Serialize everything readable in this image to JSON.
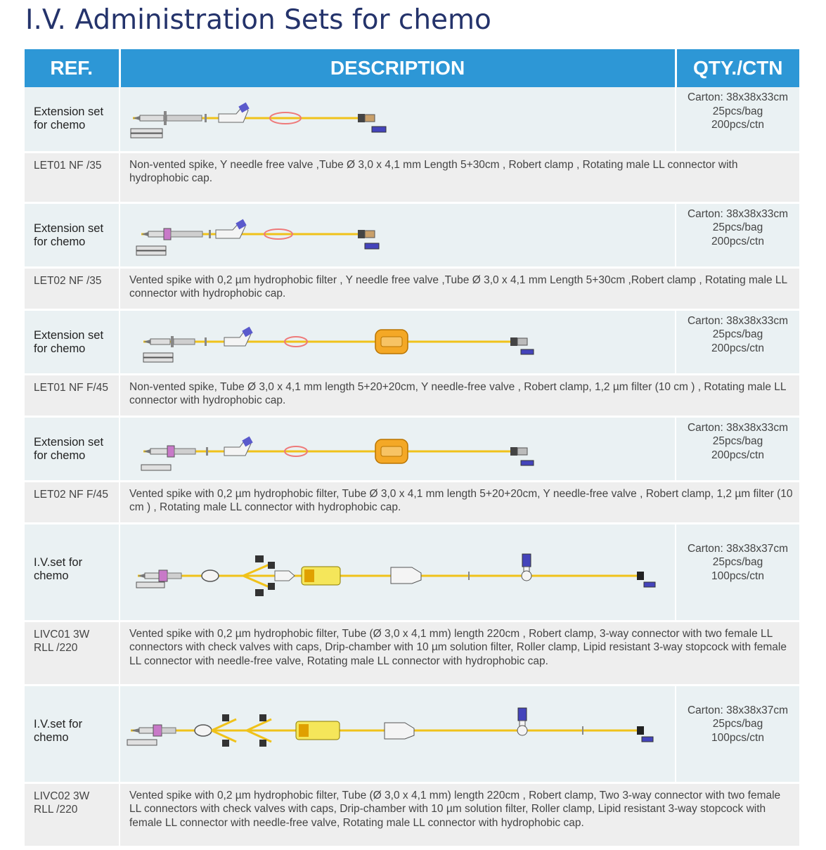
{
  "page_title": "I.V. Administration Sets for chemo",
  "header": {
    "ref": "REF.",
    "description": "DESCRIPTION",
    "qty": "QTY./CTN"
  },
  "colors": {
    "header_bg": "#2d97d6",
    "title": "#24336b",
    "tube_yellow": "#f0c21a",
    "clamp_pink": "#ee7a7a"
  },
  "products": [
    {
      "name_line1": "Extension set",
      "name_line2": "for chemo",
      "illustration": "extension-set-non-vented-icon",
      "qty": [
        "Carton: 38x38x33cm",
        "25pcs/bag",
        "200pcs/ctn"
      ],
      "code_line1": "LET01 NF /35",
      "code_line2": "",
      "description": " Non-vented spike, Y needle free valve ,Tube Ø 3,0 x 4,1 mm Length 5+30cm , Robert clamp , Rotating male LL  connector with hydrophobic cap."
    },
    {
      "name_line1": "Extension set",
      "name_line2": "for chemo",
      "illustration": "extension-set-vented-icon",
      "qty": [
        "Carton: 38x38x33cm",
        "25pcs/bag",
        "200pcs/ctn"
      ],
      "code_line1": "LET02 NF /35",
      "code_line2": "",
      "description": "Vented spike with 0,2 µm hydrophobic filter , Y needle free valve ,Tube Ø 3,0 x 4,1 mm Length 5+30cm ,Robert clamp , Rotating male LL  connector with hydrophobic cap."
    },
    {
      "name_line1": "Extension set",
      "name_line2": "for chemo",
      "illustration": "extension-set-filter-non-vented-icon",
      "qty": [
        "Carton: 38x38x33cm",
        "25pcs/bag",
        "200pcs/ctn"
      ],
      "code_line1": "LET01 NF F/45",
      "code_line2": "",
      "description": " Non-vented spike, Tube Ø 3,0 x 4,1 mm length 5+20+20cm, Y needle-free valve , Robert clamp, 1,2 µm filter (10 cm ) , Rotating male LL  connector with hydrophobic cap."
    },
    {
      "name_line1": "Extension set",
      "name_line2": "for chemo",
      "illustration": "extension-set-filter-vented-icon",
      "qty": [
        "Carton: 38x38x33cm",
        "25pcs/bag",
        "200pcs/ctn"
      ],
      "code_line1": "LET02 NF F/45",
      "code_line2": "",
      "description": " Vented spike with 0,2 µm hydrophobic filter, Tube Ø 3,0 x 4,1 mm length 5+20+20cm, Y needle-free valve , Robert clamp, 1,2 µm filter (10 cm ) , Rotating male LL  connector with hydrophobic cap."
    },
    {
      "name_line1": "I.V.set for",
      "name_line2": "chemo",
      "illustration": "iv-set-single-3way-icon",
      "qty": [
        "Carton: 38x38x37cm",
        "25pcs/bag",
        "100pcs/ctn"
      ],
      "code_line1": "LIVC01 3W",
      "code_line2": "RLL /220",
      "description": "Vented spike with 0,2 µm hydrophobic filter, Tube (Ø 3,0 x 4,1 mm) length 220cm , Robert clamp, 3-way connector with two female LL connectors with check valves  with caps, Drip-chamber with 10 µm solution filter, Roller clamp, Lipid resistant 3-way stopcock with female LL connector with needle-free valve, Rotating male LL connector with hydrophobic cap."
    },
    {
      "name_line1": "I.V.set for",
      "name_line2": "chemo",
      "illustration": "iv-set-double-3way-icon",
      "qty": [
        "Carton: 38x38x37cm",
        "25pcs/bag",
        "100pcs/ctn"
      ],
      "code_line1": "LIVC02 3W",
      "code_line2": "RLL /220",
      "description": "Vented spike with 0,2 µm hydrophobic filter, Tube (Ø 3,0 x 4,1 mm) length 220cm , Robert clamp, Two 3-way connector with two female LL connectors with check valves  with caps, Drip-chamber with 10 µm solution filter, Roller clamp, Lipid resistant 3-way stopcock with female LL connector with needle-free valve, Rotating male LL connector with hydrophobic cap."
    }
  ]
}
